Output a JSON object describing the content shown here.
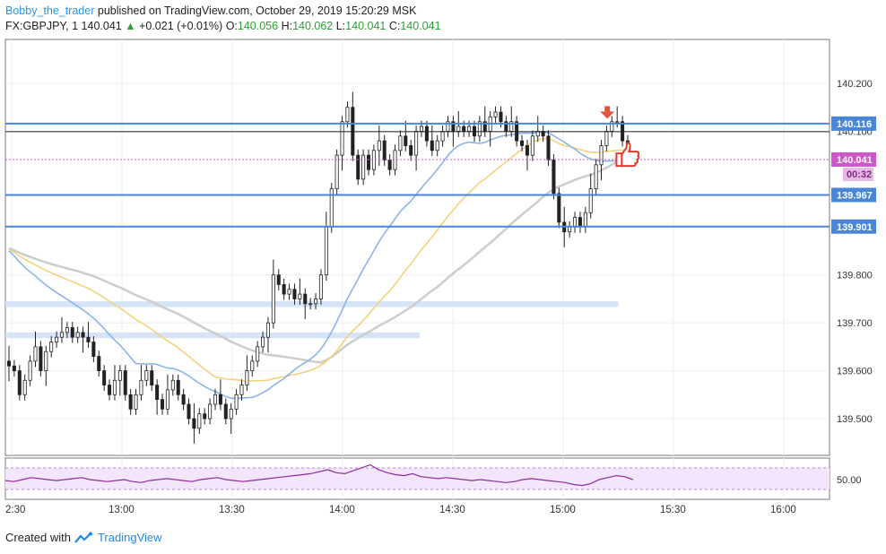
{
  "header": {
    "author": "Bobby_the_trader",
    "published_text": "published on TradingView.com, October 29, 2019 15:20:29 MSK",
    "symbol": "FX:GBPJPY, 1",
    "last": "140.041",
    "change": "+0.021 (+0.01%)",
    "o_label": "O:",
    "o_value": "140.056",
    "h_label": "H:",
    "h_value": "140.062",
    "l_label": "L:",
    "l_value": "140.041",
    "c_label": "C:",
    "c_value": "140.041"
  },
  "footer": {
    "prefix": "Created with",
    "brand": "TradingView"
  },
  "colors": {
    "up": "#ffffff",
    "down": "#222222",
    "level": "#4a86d8",
    "ma_blue": "#8ab4ea",
    "ma_yellow": "#f3d27a",
    "ma_gray": "#cccccc",
    "zone": "#d6e4f8",
    "price_label": "#cc57c7",
    "rsi": "#8e2c9c",
    "rsi_band": "#f3e5fb"
  },
  "icons": [
    "arrow-down-icon",
    "thumbs-up-icon",
    "tradingview-logo-icon"
  ],
  "chart_data": {
    "type": "candlestick",
    "timeframe": "1",
    "x_ticks": [
      "2:30",
      "13:00",
      "13:30",
      "14:00",
      "14:30",
      "15:00",
      "15:30",
      "16:00"
    ],
    "y_ticks": [
      "140.200",
      "140.100",
      "139.800",
      "139.700",
      "139.600",
      "139.500"
    ],
    "ylim": [
      139.45,
      140.26
    ],
    "horizontal_levels": [
      {
        "value": 140.116,
        "label": "140.116"
      },
      {
        "value": 139.967,
        "label": "139.967"
      },
      {
        "value": 139.901,
        "label": "139.901"
      }
    ],
    "current_price": {
      "value": 140.041,
      "label": "140.041",
      "countdown": "00:32"
    },
    "zones": [
      {
        "from_time": "12:30",
        "to_time": "15:15",
        "low": 139.733,
        "high": 139.745
      },
      {
        "from_time": "12:30",
        "to_time": "14:21",
        "low": 139.668,
        "high": 139.68
      }
    ],
    "close_series": [
      139.61,
      139.6,
      139.55,
      139.58,
      139.62,
      139.65,
      139.6,
      139.64,
      139.66,
      139.67,
      139.68,
      139.69,
      139.67,
      139.68,
      139.67,
      139.66,
      139.63,
      139.6,
      139.57,
      139.55,
      139.58,
      139.6,
      139.55,
      139.52,
      139.55,
      139.58,
      139.6,
      139.57,
      139.54,
      139.52,
      139.56,
      139.58,
      139.55,
      139.53,
      139.5,
      139.48,
      139.51,
      139.5,
      139.53,
      139.55,
      139.53,
      139.5,
      139.52,
      139.55,
      139.57,
      139.6,
      139.62,
      139.65,
      139.67,
      139.7,
      139.8,
      139.78,
      139.76,
      139.77,
      139.75,
      139.76,
      139.74,
      139.74,
      139.75,
      139.8,
      139.9,
      139.98,
      140.05,
      140.12,
      140.15,
      140.05,
      140.0,
      140.05,
      140.02,
      140.06,
      140.08,
      140.04,
      140.02,
      140.06,
      140.09,
      140.07,
      140.05,
      140.1,
      140.11,
      140.08,
      140.06,
      140.08,
      140.1,
      140.12,
      140.1,
      140.11,
      140.1,
      140.11,
      140.09,
      140.12,
      140.1,
      140.13,
      140.14,
      140.12,
      140.1,
      140.12,
      140.08,
      140.07,
      140.05,
      140.09,
      140.1,
      140.09,
      140.04,
      139.97,
      139.91,
      139.89,
      139.9,
      139.92,
      139.9,
      139.93,
      139.98,
      140.03,
      140.07,
      140.1,
      140.12,
      140.12,
      140.08,
      140.04
    ],
    "annotations": [
      {
        "type": "arrow-down",
        "time": "15:12",
        "price": 140.13
      },
      {
        "type": "thumbs-up",
        "time": "15:14",
        "price": 140.05
      }
    ],
    "indicator": {
      "name": "RSI",
      "y_tick": "50.00",
      "series": [
        49,
        48,
        50,
        52,
        51,
        50,
        49,
        50,
        51,
        52,
        50,
        49,
        48,
        49,
        50,
        48,
        47,
        49,
        50,
        51,
        50,
        49,
        48,
        50,
        51,
        52,
        50,
        49,
        48,
        49,
        50,
        51,
        52,
        53,
        54,
        55,
        56,
        58,
        60,
        57,
        56,
        59,
        62,
        65,
        60,
        57,
        55,
        54,
        56,
        53,
        52,
        51,
        52,
        51,
        50,
        49,
        50,
        49,
        48,
        47,
        48,
        50,
        51,
        50,
        49,
        48,
        47,
        45,
        44,
        46,
        50,
        52,
        54,
        53,
        50
      ]
    }
  }
}
